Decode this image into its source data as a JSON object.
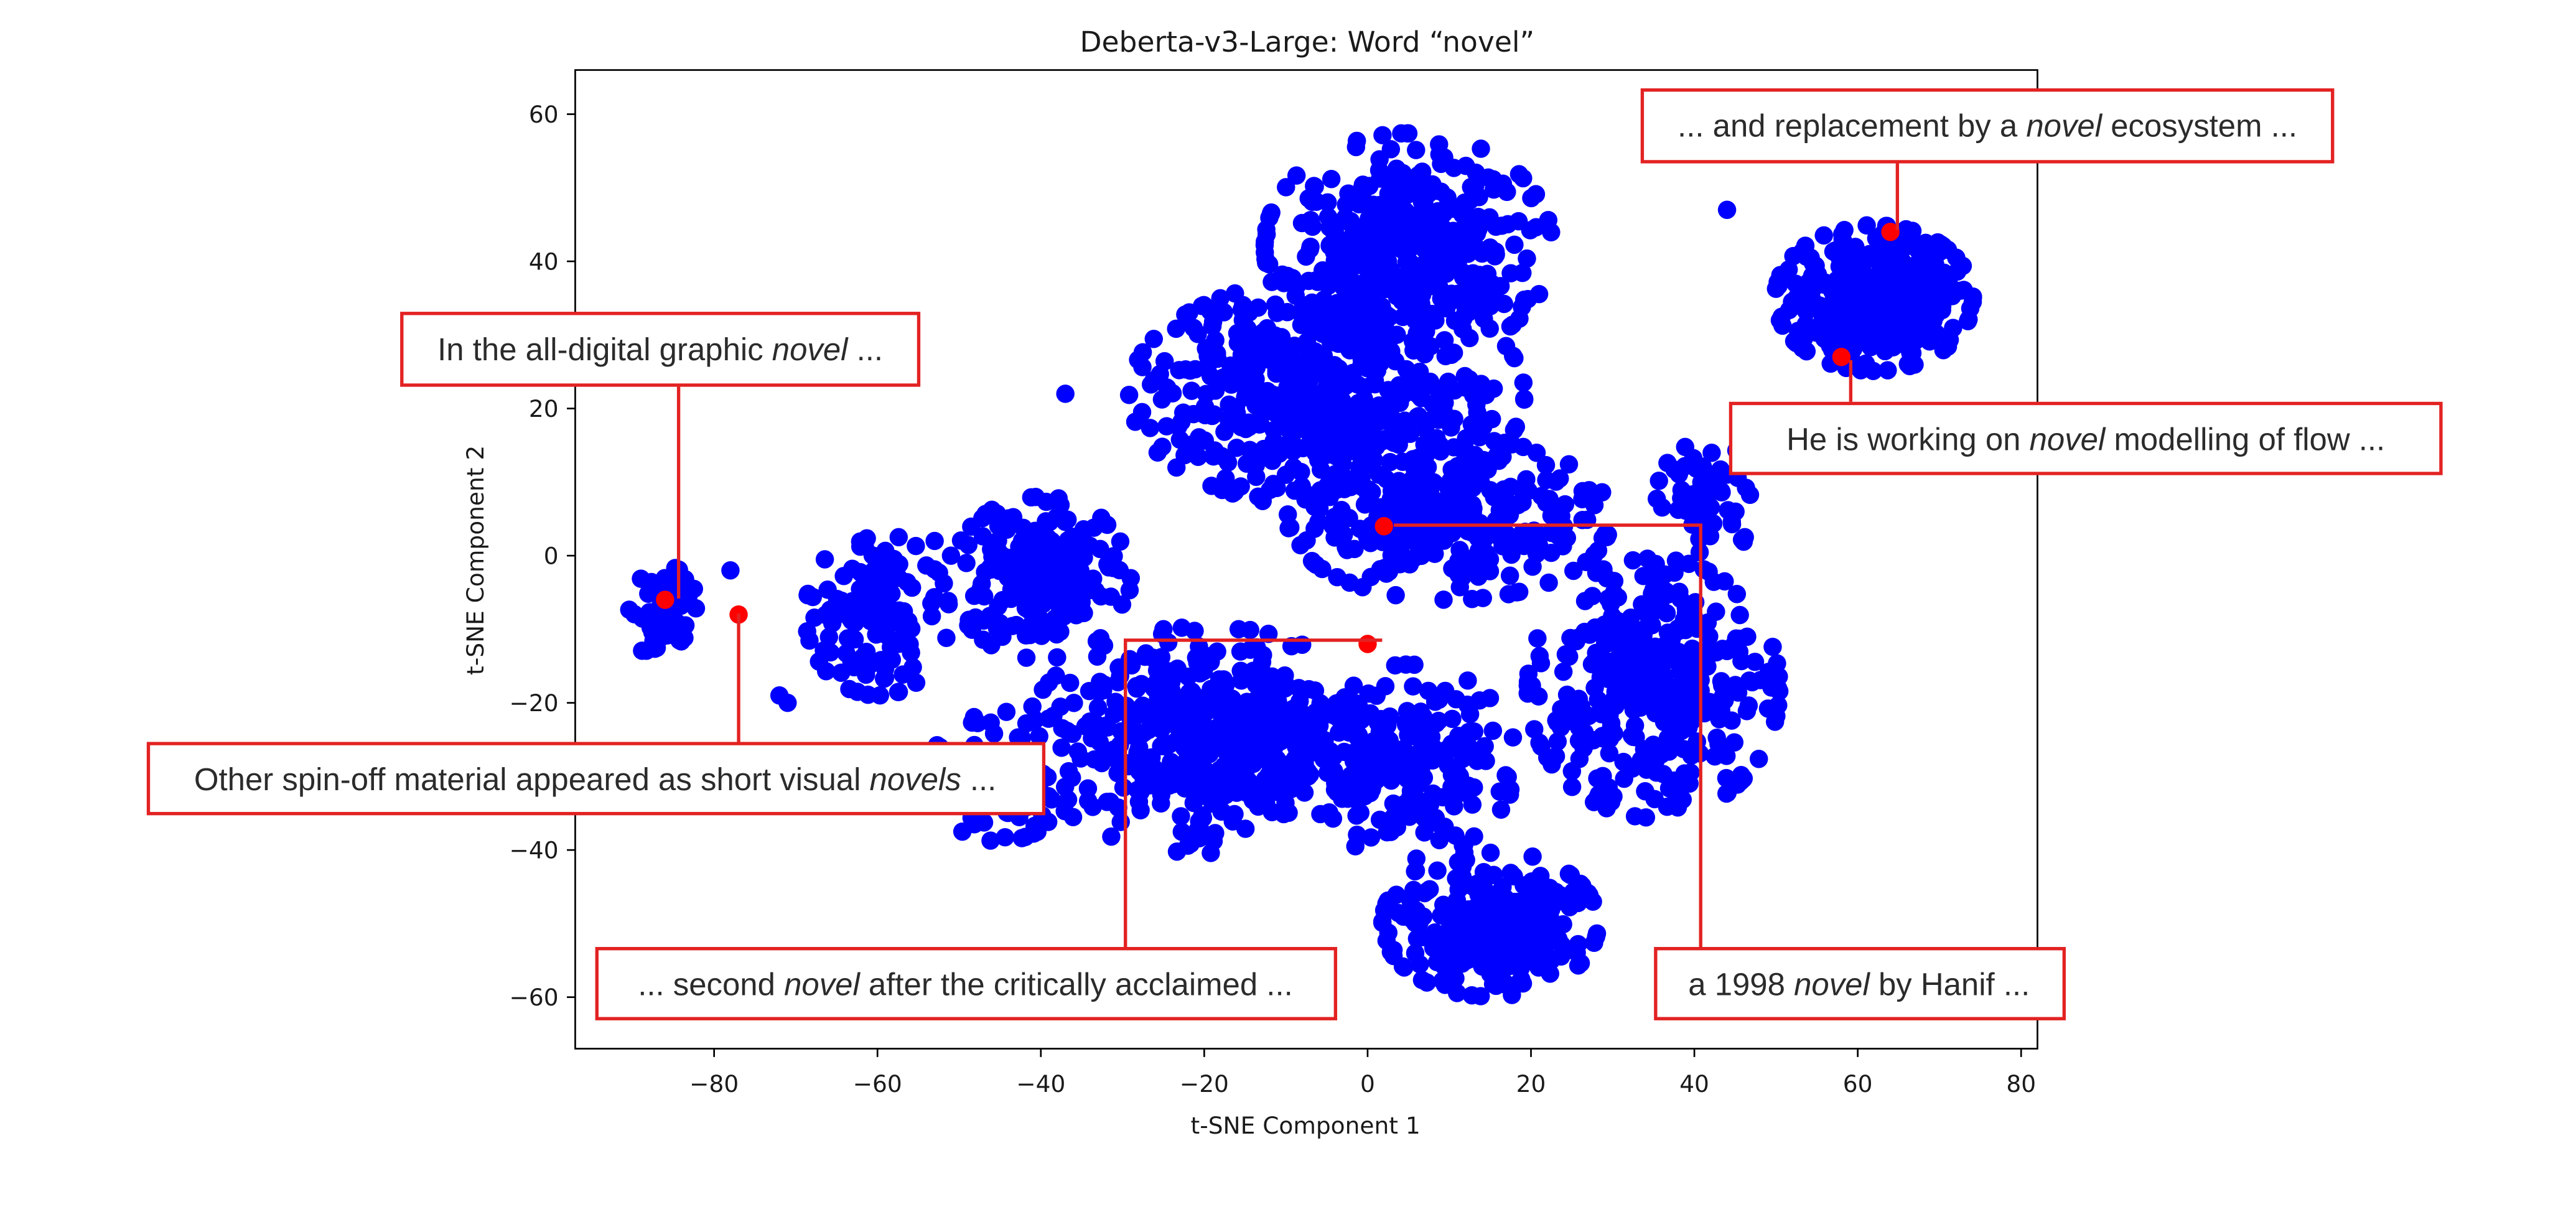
{
  "chart_data": {
    "type": "scatter",
    "title": "Deberta-v3-Large: Word “novel”",
    "xlabel": "t-SNE Component 1",
    "ylabel": "t-SNE Component 2",
    "xlim": [
      -97,
      82
    ],
    "ylim": [
      -67,
      66
    ],
    "xticks": [
      -80,
      -60,
      -40,
      -20,
      0,
      20,
      40,
      60,
      80
    ],
    "yticks": [
      -60,
      -40,
      -20,
      0,
      20,
      40,
      60
    ],
    "xtick_labels": [
      "−80",
      "−60",
      "−40",
      "−20",
      "0",
      "20",
      "40",
      "60",
      "80"
    ],
    "ytick_labels": [
      "−60",
      "−40",
      "−20",
      "0",
      "20",
      "40",
      "60"
    ],
    "grid": false,
    "point_color": "#0000ff",
    "highlight_color": "#ff0000",
    "clusters": [
      {
        "cx": 5,
        "cy": 42,
        "rx": 16,
        "ry": 14,
        "n": 420
      },
      {
        "cx": -5,
        "cy": 22,
        "rx": 22,
        "ry": 14,
        "n": 520
      },
      {
        "cx": 10,
        "cy": 5,
        "rx": 18,
        "ry": 10,
        "n": 300
      },
      {
        "cx": -40,
        "cy": -3,
        "rx": 10,
        "ry": 10,
        "n": 200
      },
      {
        "cx": -60,
        "cy": -8,
        "rx": 8,
        "ry": 10,
        "n": 140
      },
      {
        "cx": -20,
        "cy": -25,
        "rx": 20,
        "ry": 14,
        "n": 480
      },
      {
        "cx": 35,
        "cy": -18,
        "rx": 14,
        "ry": 16,
        "n": 380
      },
      {
        "cx": 15,
        "cy": -50,
        "rx": 12,
        "ry": 9,
        "n": 280
      },
      {
        "cx": 5,
        "cy": -28,
        "rx": 12,
        "ry": 12,
        "n": 200
      },
      {
        "cx": 62,
        "cy": 35,
        "rx": 11,
        "ry": 9,
        "n": 380
      },
      {
        "cx": -86,
        "cy": -8,
        "rx": 4,
        "ry": 6,
        "n": 70
      },
      {
        "cx": 42,
        "cy": 8,
        "rx": 6,
        "ry": 7,
        "n": 60
      },
      {
        "cx": -45,
        "cy": -30,
        "rx": 8,
        "ry": 8,
        "n": 90
      }
    ],
    "extra_points": [
      [
        -72,
        -19
      ],
      [
        -71,
        -20
      ],
      [
        -78,
        -2
      ],
      [
        -53,
        2
      ],
      [
        -51,
        0
      ],
      [
        44,
        47
      ],
      [
        -37,
        22
      ]
    ],
    "highlights": [
      {
        "x": 64,
        "y": 44
      },
      {
        "x": 58,
        "y": 27
      },
      {
        "x": -86,
        "y": -6
      },
      {
        "x": -77,
        "y": -8
      },
      {
        "x": 2,
        "y": 4
      },
      {
        "x": 0,
        "y": -12
      }
    ],
    "annotations": [
      {
        "pre": "... and replacement by a ",
        "em": "novel",
        "post": " ecosystem ..."
      },
      {
        "pre": "In the all-digital graphic ",
        "em": "novel",
        "post": " ..."
      },
      {
        "pre": "He is working on ",
        "em": "novel",
        "post": " modelling of flow ..."
      },
      {
        "pre": "Other spin-off material appeared as short visual ",
        "em": "novels",
        "post": " ..."
      },
      {
        "pre": "... second ",
        "em": "novel",
        "post": " after the critically acclaimed ..."
      },
      {
        "pre": "a 1998 ",
        "em": "novel",
        "post": " by Hanif ..."
      }
    ]
  }
}
